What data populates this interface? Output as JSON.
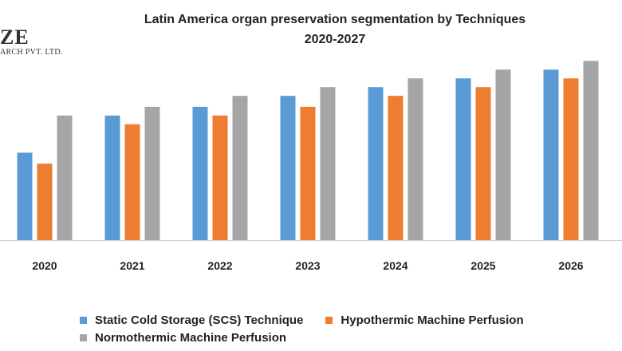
{
  "logo": {
    "line1": "ZE",
    "line2": "ARCH PVT. LTD."
  },
  "chart_data": {
    "type": "bar",
    "title_line1": "Latin America organ preservation segmentation by Techniques",
    "title_line2": "2020-2027",
    "categories": [
      "2020",
      "2021",
      "2022",
      "2023",
      "2024",
      "2025",
      "2026"
    ],
    "series": [
      {
        "name": "Static Cold Storage (SCS) Technique",
        "color": "#5b9bd5",
        "values": [
          40,
          57,
          61,
          66,
          70,
          74,
          78
        ]
      },
      {
        "name": "Hypothermic Machine Perfusion",
        "color": "#ed7d31",
        "values": [
          35,
          53,
          57,
          61,
          66,
          70,
          74
        ]
      },
      {
        "name": "Normothermic Machine Perfusion",
        "color": "#a5a5a5",
        "values": [
          57,
          61,
          66,
          70,
          74,
          78,
          82
        ]
      }
    ],
    "ylim": [
      0,
      100
    ],
    "xlabel": "",
    "ylabel": "",
    "grid": false,
    "legend_position": "bottom"
  }
}
